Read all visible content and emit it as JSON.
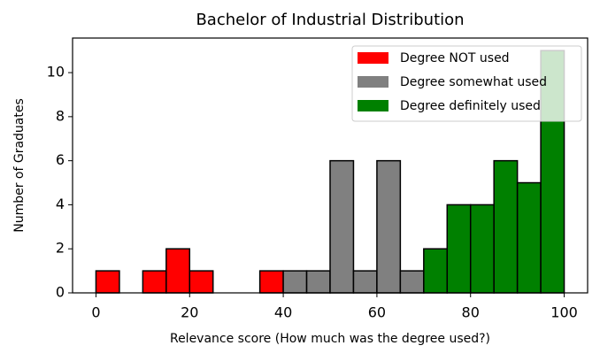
{
  "chart_data": {
    "type": "histogram",
    "title": "Bachelor of Industrial Distribution",
    "xlabel": "Relevance score (How much was the degree used?)",
    "ylabel": "Number of Graduates",
    "series": [
      {
        "name": "Degree NOT used",
        "color": "#ff0000",
        "bins": [
          0,
          5,
          10,
          15,
          20,
          25,
          30,
          35,
          40
        ],
        "values": [
          1,
          0,
          1,
          2,
          1,
          0,
          0,
          1
        ]
      },
      {
        "name": "Degree somewhat used",
        "color": "#808080",
        "bins": [
          40,
          45,
          50,
          55,
          60,
          65,
          70
        ],
        "values": [
          1,
          1,
          6,
          1,
          6,
          1
        ]
      },
      {
        "name": "Degree definitely used",
        "color": "#008000",
        "bins": [
          70,
          75,
          80,
          85,
          90,
          95,
          100
        ],
        "values": [
          2,
          4,
          4,
          6,
          5,
          11
        ]
      }
    ],
    "xlim": [
      -5,
      105
    ],
    "xticks": [
      0,
      20,
      40,
      60,
      80,
      100
    ],
    "ylim": [
      0,
      11.57
    ],
    "yticks": [
      0,
      2,
      4,
      6,
      8,
      10
    ],
    "legend": "upper right"
  }
}
